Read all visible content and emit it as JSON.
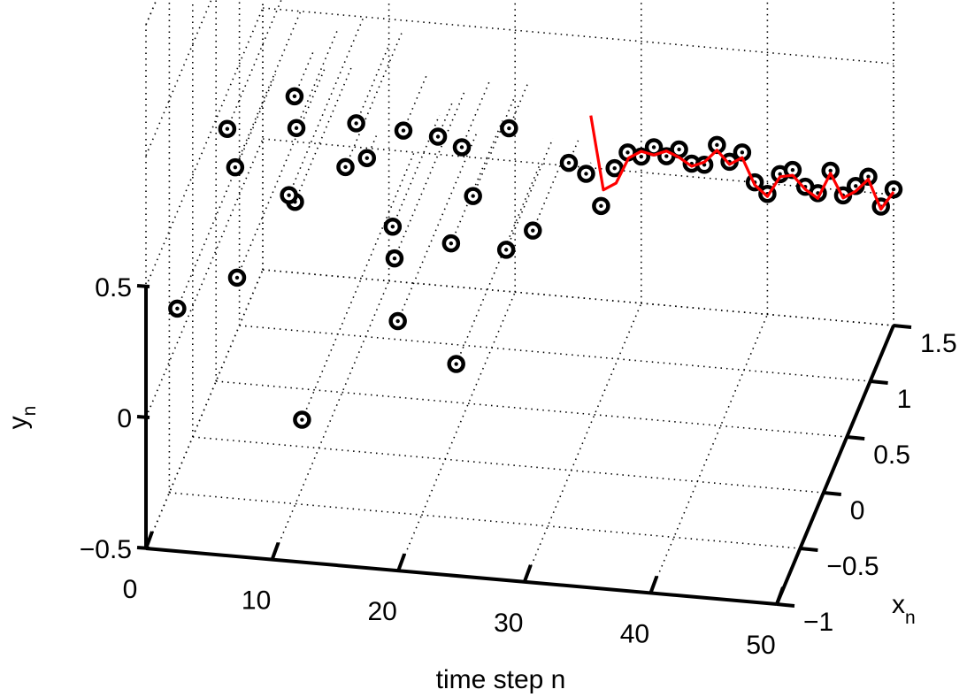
{
  "chart_data": {
    "type": "scatter",
    "projection": "3d",
    "xlabel": "time step n",
    "ylabel": "y_n",
    "zlabel": "x_n",
    "axes": {
      "time": {
        "label": "time step n",
        "lim": [
          0,
          50
        ],
        "ticks": [
          "0",
          "10",
          "20",
          "30",
          "40",
          "50"
        ]
      },
      "x_n": {
        "label_main": "x",
        "label_sub": "n",
        "lim": [
          -1,
          1.5
        ],
        "ticks": [
          "−1",
          "−0.5",
          "0",
          "0.5",
          "1",
          "1.5"
        ]
      },
      "y_n": {
        "label_main": "y",
        "label_sub": "n",
        "lim": [
          -0.5,
          0.5
        ],
        "ticks": [
          "−0.5",
          "0",
          "0.5"
        ]
      }
    },
    "grid": true,
    "series": [
      {
        "style": "black circle markers with dotted stems",
        "points": [
          {
            "n": 1,
            "x": -0.6,
            "y": 0.25
          },
          {
            "n": 2,
            "x": 0.2,
            "y": 0.6
          },
          {
            "n": 3,
            "x": 0.1,
            "y": 0.5
          },
          {
            "n": 4,
            "x": 1.1,
            "y": 0.35
          },
          {
            "n": 5,
            "x": -0.4,
            "y": 0.3
          },
          {
            "n": 6,
            "x": 0.6,
            "y": 0.45
          },
          {
            "n": 7,
            "x": 0.3,
            "y": 0.3
          },
          {
            "n": 8,
            "x": -0.1,
            "y": 0.5
          },
          {
            "n": 9,
            "x": 1.3,
            "y": 0.05
          },
          {
            "n": 10,
            "x": 0.8,
            "y": 0.4
          },
          {
            "n": 11,
            "x": 0.3,
            "y": 0.45
          },
          {
            "n": 12,
            "x": -0.9,
            "y": 0.0
          },
          {
            "n": 13,
            "x": 1.0,
            "y": 0.3
          },
          {
            "n": 14,
            "x": 0.5,
            "y": 0.15
          },
          {
            "n": 15,
            "x": 1.2,
            "y": 0.2
          },
          {
            "n": 16,
            "x": 0.0,
            "y": 0.25
          },
          {
            "n": 17,
            "x": -0.2,
            "y": 0.1
          },
          {
            "n": 18,
            "x": 0.9,
            "y": 0.3
          },
          {
            "n": 19,
            "x": 0.4,
            "y": 0.15
          },
          {
            "n": 20,
            "x": 0.6,
            "y": 0.25
          },
          {
            "n": 21,
            "x": 1.1,
            "y": 0.3
          },
          {
            "n": 22,
            "x": -0.3,
            "y": 0.0
          },
          {
            "n": 23,
            "x": 0.5,
            "y": 0.1
          },
          {
            "n": 24,
            "x": 0.8,
            "y": 0.05
          },
          {
            "n": 25,
            "x": 1.3,
            "y": 0.1
          },
          {
            "n": 26,
            "x": 1.4,
            "y": 0.02
          },
          {
            "n": 27,
            "x": 1.45,
            "y": -0.12
          },
          {
            "n": 28,
            "x": 1.47,
            "y": 0.02
          },
          {
            "n": 29,
            "x": 1.48,
            "y": 0.08
          },
          {
            "n": 30,
            "x": 1.5,
            "y": 0.06
          },
          {
            "n": 31,
            "x": 1.5,
            "y": 0.1
          },
          {
            "n": 32,
            "x": 1.5,
            "y": 0.07
          },
          {
            "n": 33,
            "x": 1.5,
            "y": 0.1
          },
          {
            "n": 34,
            "x": 1.5,
            "y": 0.05
          },
          {
            "n": 35,
            "x": 1.5,
            "y": 0.05
          },
          {
            "n": 36,
            "x": 1.5,
            "y": 0.13
          },
          {
            "n": 37,
            "x": 1.5,
            "y": 0.07
          },
          {
            "n": 38,
            "x": 1.5,
            "y": 0.11
          },
          {
            "n": 39,
            "x": 1.5,
            "y": 0.0
          },
          {
            "n": 40,
            "x": 1.5,
            "y": -0.04
          },
          {
            "n": 41,
            "x": 1.5,
            "y": 0.04
          },
          {
            "n": 42,
            "x": 1.5,
            "y": 0.06
          },
          {
            "n": 43,
            "x": 1.5,
            "y": 0.0
          },
          {
            "n": 44,
            "x": 1.5,
            "y": -0.02
          },
          {
            "n": 45,
            "x": 1.5,
            "y": 0.07
          },
          {
            "n": 46,
            "x": 1.5,
            "y": -0.02
          },
          {
            "n": 47,
            "x": 1.5,
            "y": 0.02
          },
          {
            "n": 48,
            "x": 1.5,
            "y": 0.06
          },
          {
            "n": 49,
            "x": 1.5,
            "y": -0.05
          },
          {
            "n": 50,
            "x": 1.5,
            "y": 0.02
          }
        ]
      },
      {
        "style": "red line",
        "color": "#ff0000",
        "points": [
          {
            "n": 26,
            "x": 1.5,
            "y": 0.2
          },
          {
            "n": 27,
            "x": 1.5,
            "y": -0.08
          },
          {
            "n": 28,
            "x": 1.5,
            "y": -0.05
          },
          {
            "n": 29,
            "x": 1.5,
            "y": 0.05
          },
          {
            "n": 30,
            "x": 1.5,
            "y": 0.08
          },
          {
            "n": 31,
            "x": 1.5,
            "y": 0.07
          },
          {
            "n": 32,
            "x": 1.5,
            "y": 0.09
          },
          {
            "n": 33,
            "x": 1.5,
            "y": 0.07
          },
          {
            "n": 34,
            "x": 1.5,
            "y": 0.04
          },
          {
            "n": 35,
            "x": 1.5,
            "y": 0.06
          },
          {
            "n": 36,
            "x": 1.5,
            "y": 0.11
          },
          {
            "n": 37,
            "x": 1.5,
            "y": 0.06
          },
          {
            "n": 38,
            "x": 1.5,
            "y": 0.09
          },
          {
            "n": 39,
            "x": 1.5,
            "y": -0.01
          },
          {
            "n": 40,
            "x": 1.5,
            "y": -0.05
          },
          {
            "n": 41,
            "x": 1.5,
            "y": 0.03
          },
          {
            "n": 42,
            "x": 1.5,
            "y": 0.04
          },
          {
            "n": 43,
            "x": 1.5,
            "y": -0.01
          },
          {
            "n": 44,
            "x": 1.5,
            "y": -0.04
          },
          {
            "n": 45,
            "x": 1.5,
            "y": 0.06
          },
          {
            "n": 46,
            "x": 1.5,
            "y": -0.03
          },
          {
            "n": 47,
            "x": 1.5,
            "y": 0.0
          },
          {
            "n": 48,
            "x": 1.5,
            "y": 0.05
          },
          {
            "n": 49,
            "x": 1.5,
            "y": -0.06
          },
          {
            "n": 50,
            "x": 1.5,
            "y": 0.01
          }
        ]
      }
    ]
  }
}
